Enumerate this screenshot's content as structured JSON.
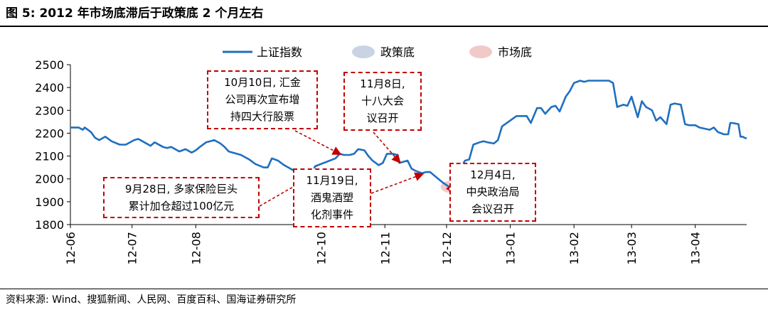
{
  "figure": {
    "title": "图 5:   2012 年市场底滞后于政策底 2 个月左右",
    "source": "资料来源: Wind、搜狐新闻、人民网、百度百科、国海证券研究所"
  },
  "colors": {
    "line": "#1f6fbf",
    "policy_bottom": "#c9d3e3",
    "market_bottom": "#f2c9c9",
    "annotation": "#c00000"
  },
  "chart_data": {
    "type": "line",
    "legend": {
      "placement": "top",
      "items": [
        {
          "label": "上证指数",
          "marker": "line",
          "color": "#1f6fbf"
        },
        {
          "label": "政策底",
          "marker": "ellipse",
          "color": "#c9d3e3"
        },
        {
          "label": "市场底",
          "marker": "ellipse",
          "color": "#f2c9c9"
        }
      ]
    },
    "ylim": [
      1800,
      2500
    ],
    "yticks": [
      1800,
      1900,
      2000,
      2100,
      2200,
      2300,
      2400,
      2500
    ],
    "x_ticks": [
      "12-06",
      "12-07",
      "12-08",
      "12-10",
      "12-11",
      "12-12",
      "13-01",
      "13-02",
      "13-03",
      "13-04"
    ],
    "x_tick_dates": [
      "2012-06-01",
      "2012-07-01",
      "2012-08-01",
      "2012-10-01",
      "2012-11-01",
      "2012-12-01",
      "2013-01-01",
      "2013-02-01",
      "2013-03-01",
      "2013-04-01"
    ],
    "x_range": [
      "2012-06-01",
      "2013-04-26"
    ],
    "grid": false,
    "series": [
      {
        "name": "上证指数",
        "points": [
          [
            "2012-06-01",
            2225
          ],
          [
            "2012-06-05",
            2225
          ],
          [
            "2012-06-07",
            2215
          ],
          [
            "2012-06-08",
            2225
          ],
          [
            "2012-06-11",
            2205
          ],
          [
            "2012-06-13",
            2180
          ],
          [
            "2012-06-15",
            2170
          ],
          [
            "2012-06-18",
            2185
          ],
          [
            "2012-06-21",
            2165
          ],
          [
            "2012-06-25",
            2150
          ],
          [
            "2012-06-28",
            2150
          ],
          [
            "2012-07-02",
            2170
          ],
          [
            "2012-07-04",
            2175
          ],
          [
            "2012-07-06",
            2165
          ],
          [
            "2012-07-10",
            2145
          ],
          [
            "2012-07-12",
            2160
          ],
          [
            "2012-07-16",
            2140
          ],
          [
            "2012-07-18",
            2135
          ],
          [
            "2012-07-20",
            2140
          ],
          [
            "2012-07-24",
            2120
          ],
          [
            "2012-07-27",
            2130
          ],
          [
            "2012-07-30",
            2115
          ],
          [
            "2012-08-01",
            2125
          ],
          [
            "2012-08-03",
            2140
          ],
          [
            "2012-08-06",
            2160
          ],
          [
            "2012-08-08",
            2165
          ],
          [
            "2012-08-10",
            2170
          ],
          [
            "2012-08-13",
            2155
          ],
          [
            "2012-08-15",
            2140
          ],
          [
            "2012-08-17",
            2120
          ],
          [
            "2012-08-21",
            2110
          ],
          [
            "2012-08-23",
            2105
          ],
          [
            "2012-08-27",
            2085
          ],
          [
            "2012-08-30",
            2065
          ],
          [
            "2012-09-03",
            2050
          ],
          [
            "2012-09-05",
            2050
          ],
          [
            "2012-09-07",
            2090
          ],
          [
            "2012-09-10",
            2080
          ],
          [
            "2012-09-13",
            2060
          ],
          [
            "2012-09-17",
            2040
          ],
          [
            "2012-09-19",
            2030
          ],
          [
            "2012-09-21",
            2025
          ],
          [
            "2012-09-24",
            2030
          ],
          [
            "2012-09-26",
            2010
          ],
          [
            "2012-09-27",
            2030
          ],
          [
            "2012-09-28",
            2055
          ],
          [
            "2012-10-08",
            2090
          ],
          [
            "2012-10-10",
            2110
          ],
          [
            "2012-10-12",
            2105
          ],
          [
            "2012-10-15",
            2105
          ],
          [
            "2012-10-17",
            2110
          ],
          [
            "2012-10-19",
            2130
          ],
          [
            "2012-10-22",
            2125
          ],
          [
            "2012-10-24",
            2100
          ],
          [
            "2012-10-26",
            2080
          ],
          [
            "2012-10-29",
            2060
          ],
          [
            "2012-10-31",
            2070
          ],
          [
            "2012-11-02",
            2110
          ],
          [
            "2012-11-05",
            2110
          ],
          [
            "2012-11-07",
            2105
          ],
          [
            "2012-11-08",
            2070
          ],
          [
            "2012-11-12",
            2080
          ],
          [
            "2012-11-14",
            2045
          ],
          [
            "2012-11-16",
            2035
          ],
          [
            "2012-11-19",
            2025
          ],
          [
            "2012-11-21",
            2030
          ],
          [
            "2012-11-23",
            2030
          ],
          [
            "2012-11-27",
            2000
          ],
          [
            "2012-11-29",
            1985
          ],
          [
            "2012-12-03",
            1960
          ],
          [
            "2012-12-04",
            1970
          ],
          [
            "2012-12-05",
            2030
          ],
          [
            "2012-12-07",
            2040
          ],
          [
            "2012-12-10",
            2080
          ],
          [
            "2012-12-12",
            2085
          ],
          [
            "2012-12-14",
            2150
          ],
          [
            "2012-12-17",
            2160
          ],
          [
            "2012-12-19",
            2165
          ],
          [
            "2012-12-21",
            2160
          ],
          [
            "2012-12-24",
            2155
          ],
          [
            "2012-12-26",
            2170
          ],
          [
            "2012-12-28",
            2230
          ],
          [
            "2013-01-04",
            2275
          ],
          [
            "2013-01-07",
            2275
          ],
          [
            "2013-01-09",
            2275
          ],
          [
            "2013-01-11",
            2245
          ],
          [
            "2013-01-14",
            2310
          ],
          [
            "2013-01-16",
            2310
          ],
          [
            "2013-01-18",
            2285
          ],
          [
            "2013-01-21",
            2315
          ],
          [
            "2013-01-23",
            2320
          ],
          [
            "2013-01-25",
            2295
          ],
          [
            "2013-01-28",
            2360
          ],
          [
            "2013-01-30",
            2385
          ],
          [
            "2013-02-01",
            2420
          ],
          [
            "2013-02-04",
            2430
          ],
          [
            "2013-02-06",
            2425
          ],
          [
            "2013-02-08",
            2430
          ],
          [
            "2013-02-18",
            2430
          ],
          [
            "2013-02-20",
            2420
          ],
          [
            "2013-02-22",
            2315
          ],
          [
            "2013-02-25",
            2325
          ],
          [
            "2013-02-27",
            2320
          ],
          [
            "2013-03-01",
            2360
          ],
          [
            "2013-03-04",
            2270
          ],
          [
            "2013-03-06",
            2340
          ],
          [
            "2013-03-08",
            2315
          ],
          [
            "2013-03-11",
            2300
          ],
          [
            "2013-03-13",
            2255
          ],
          [
            "2013-03-15",
            2270
          ],
          [
            "2013-03-18",
            2240
          ],
          [
            "2013-03-20",
            2325
          ],
          [
            "2013-03-22",
            2330
          ],
          [
            "2013-03-25",
            2325
          ],
          [
            "2013-03-27",
            2240
          ],
          [
            "2013-03-29",
            2235
          ],
          [
            "2013-04-01",
            2235
          ],
          [
            "2013-04-03",
            2225
          ],
          [
            "2013-04-08",
            2215
          ],
          [
            "2013-04-10",
            2225
          ],
          [
            "2013-04-12",
            2205
          ],
          [
            "2013-04-15",
            2195
          ],
          [
            "2013-04-17",
            2195
          ],
          [
            "2013-04-18",
            2245
          ],
          [
            "2013-04-19",
            2245
          ],
          [
            "2013-04-22",
            2240
          ],
          [
            "2013-04-23",
            2185
          ],
          [
            "2013-04-24",
            2185
          ],
          [
            "2013-04-25",
            2180
          ],
          [
            "2013-04-26",
            2177
          ]
        ]
      }
    ],
    "highlights": [
      {
        "name": "政策底",
        "date": "2012-09-27",
        "value": 2015,
        "color": "#c9d3e3"
      },
      {
        "name": "市场底",
        "date": "2012-12-04",
        "value": 1965,
        "color": "#f2c9c9"
      }
    ],
    "annotations": [
      {
        "text": "10月10日, 汇金\n公司再次宣布增\n持四大行股票",
        "target_date": "2012-10-10",
        "target_value": 2110
      },
      {
        "text": "11月8日,\n十八大会\n议召开",
        "target_date": "2012-11-08",
        "target_value": 2075
      },
      {
        "text": "9月28日, 多家保险巨头\n累计加仓超过100亿元",
        "target_date": "2012-09-28",
        "target_value": 2020
      },
      {
        "text": "11月19日,\n酒鬼酒塑\n化剂事件",
        "target_date": "2012-11-19",
        "target_value": 2020
      },
      {
        "text": "12月4日,\n中央政治局\n会议召开",
        "target_date": "2012-12-04",
        "target_value": 1975
      }
    ]
  }
}
